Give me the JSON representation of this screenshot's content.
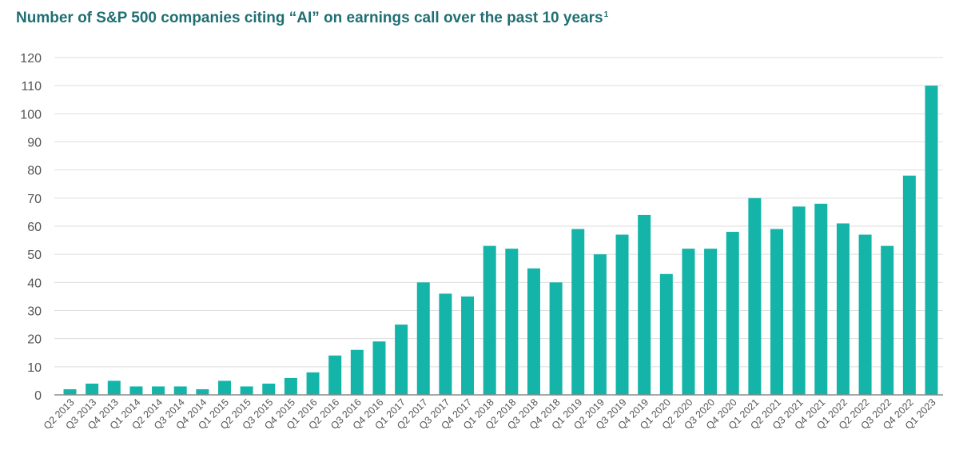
{
  "chart_data": {
    "type": "bar",
    "title": "Number of S&P 500 companies citing “AI” on earnings call over the past 10 years",
    "title_footnote": "1",
    "xlabel": "",
    "ylabel": "",
    "ylim": [
      0,
      120
    ],
    "yticks": [
      0,
      10,
      20,
      30,
      40,
      50,
      60,
      70,
      80,
      90,
      100,
      110,
      120
    ],
    "grid": true,
    "bar_color": "#14b5a8",
    "title_color": "#1f6f73",
    "categories": [
      "Q2 2013",
      "Q3 2013",
      "Q4 2013",
      "Q1 2014",
      "Q2 2014",
      "Q3 2014",
      "Q4 2014",
      "Q1 2015",
      "Q2 2015",
      "Q3 2015",
      "Q4 2015",
      "Q1 2016",
      "Q2 2016",
      "Q3 2016",
      "Q4 2016",
      "Q1 2017",
      "Q2 2017",
      "Q3 2017",
      "Q4 2017",
      "Q1 2018",
      "Q2 2018",
      "Q3 2018",
      "Q4 2018",
      "Q1 2019",
      "Q2 2019",
      "Q3 2019",
      "Q4 2019",
      "Q1 2020",
      "Q2 2020",
      "Q3 2020",
      "Q4 2020",
      "Q1 2021",
      "Q2 2021",
      "Q3 2021",
      "Q4 2021",
      "Q1 2022",
      "Q2 2022",
      "Q3 2022",
      "Q4 2022",
      "Q1 2023"
    ],
    "values": [
      2,
      4,
      5,
      3,
      3,
      3,
      2,
      5,
      3,
      4,
      6,
      8,
      14,
      16,
      19,
      25,
      40,
      36,
      35,
      53,
      52,
      45,
      40,
      59,
      50,
      57,
      64,
      43,
      52,
      52,
      58,
      70,
      59,
      67,
      68,
      61,
      57,
      53,
      78,
      110
    ]
  }
}
